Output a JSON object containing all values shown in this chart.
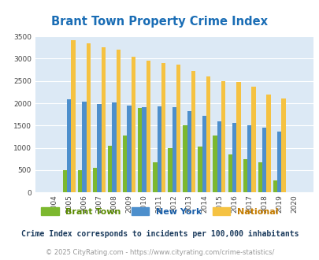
{
  "title": "Brant Town Property Crime Index",
  "years": [
    "2004",
    "2005",
    "2006",
    "2007",
    "2008",
    "2009",
    "2010",
    "2011",
    "2012",
    "2013",
    "2014",
    "2015",
    "2016",
    "2017",
    "2018",
    "2019",
    "2020"
  ],
  "brant_town": [
    0,
    500,
    500,
    560,
    1040,
    1280,
    1900,
    680,
    990,
    1500,
    1020,
    1270,
    850,
    740,
    680,
    270,
    0
  ],
  "new_york": [
    0,
    2090,
    2040,
    1990,
    2010,
    1940,
    1910,
    1930,
    1920,
    1820,
    1710,
    1600,
    1560,
    1510,
    1450,
    1360,
    0
  ],
  "national": [
    0,
    3420,
    3340,
    3260,
    3210,
    3050,
    2960,
    2910,
    2860,
    2730,
    2600,
    2500,
    2470,
    2380,
    2200,
    2110,
    0
  ],
  "brant_color": "#7cb82f",
  "ny_color": "#4d8fcc",
  "national_color": "#f5c242",
  "bg_color": "#dce9f5",
  "ylim": [
    0,
    3500
  ],
  "yticks": [
    0,
    500,
    1000,
    1500,
    2000,
    2500,
    3000,
    3500
  ],
  "subtitle": "Crime Index corresponds to incidents per 100,000 inhabitants",
  "footer": "© 2025 CityRating.com - https://www.cityrating.com/crime-statistics/",
  "title_color": "#1a6db5",
  "subtitle_color": "#1a3a5c",
  "footer_color": "#999999",
  "legend_label_colors": [
    "#5a8a00",
    "#1a5fa8",
    "#c47c00"
  ],
  "legend_labels": [
    "Brant Town",
    "New York",
    "National"
  ]
}
